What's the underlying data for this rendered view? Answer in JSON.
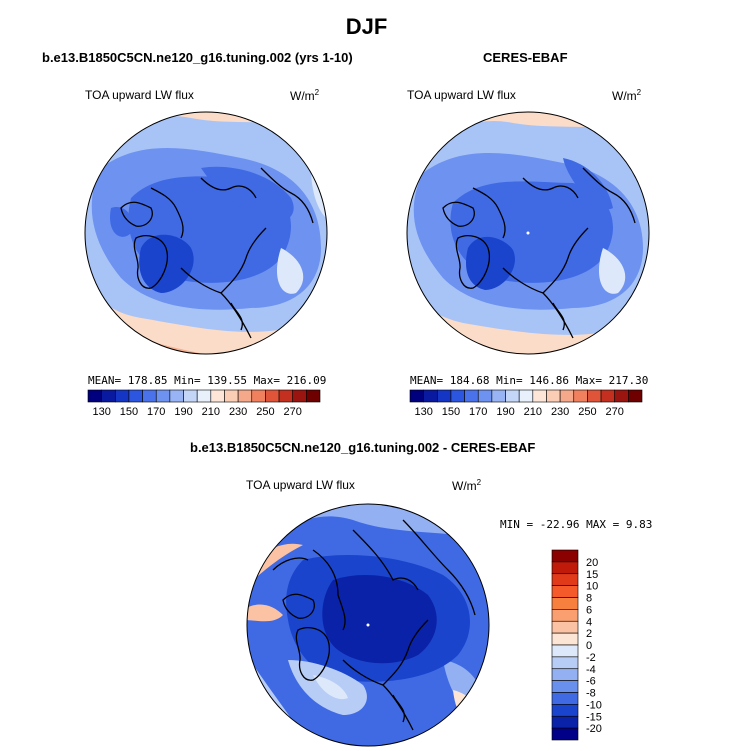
{
  "title": "DJF",
  "panels": [
    {
      "title": "b.e13.B1850C5CN.ne120_g16.tuning.002 (yrs 1-10)",
      "variable": "TOA upward LW flux",
      "units": "W/m",
      "units_sup": "2",
      "stats": {
        "mean": "178.85",
        "min": "139.55",
        "max": "216.09"
      },
      "stats_text": "MEAN= 178.85   Min= 139.55   Max= 216.09"
    },
    {
      "title": "CERES-EBAF",
      "variable": "TOA upward LW flux",
      "units": "W/m",
      "units_sup": "2",
      "stats": {
        "mean": "184.68",
        "min": "146.86",
        "max": "217.30"
      },
      "stats_text": "MEAN= 184.68   Min= 146.86   Max= 217.30"
    },
    {
      "title": "b.e13.B1850C5CN.ne120_g16.tuning.002 - CERES-EBAF",
      "variable": "TOA upward LW flux",
      "units": "W/m",
      "units_sup": "2",
      "stats": {
        "min": "-22.96",
        "max": "9.83"
      },
      "stats_text": "MIN = -22.96  MAX =   9.83"
    }
  ],
  "abs_colorbar": {
    "labels": [
      "130",
      "150",
      "170",
      "190",
      "210",
      "230",
      "250",
      "270"
    ],
    "colors": [
      "#00007f",
      "#0a1aa0",
      "#1536c4",
      "#2c56e0",
      "#4a72ea",
      "#6e92f0",
      "#98b4f4",
      "#c3d6f8",
      "#e8f0fc",
      "#fde6d8",
      "#fbcdb5",
      "#f6a88a",
      "#f0805e",
      "#e0553a",
      "#c3301f",
      "#9a1410",
      "#6e0000"
    ]
  },
  "diff_colorbar": {
    "labels": [
      "20",
      "15",
      "10",
      "8",
      "6",
      "4",
      "2",
      "0",
      "-2",
      "-4",
      "-6",
      "-8",
      "-10",
      "-15",
      "-20"
    ],
    "colors": [
      "#8b0000",
      "#c01a0a",
      "#e03a1a",
      "#f45a2a",
      "#f8803f",
      "#fa9f70",
      "#fbc3a4",
      "#fde5d5",
      "#dde9fb",
      "#b8cdf6",
      "#92b0f2",
      "#6a90ee",
      "#3f6ae4",
      "#1a44cc",
      "#0a22a8",
      "#000088"
    ]
  },
  "map_colors": {
    "deep_blue": "#1a44cc",
    "blue": "#3f6ae4",
    "mid_blue": "#6e92f0",
    "light_blue": "#a8c4f6",
    "pale_blue": "#dde9fb",
    "pale_orange": "#fbdcc8",
    "orange": "#f6b090"
  }
}
